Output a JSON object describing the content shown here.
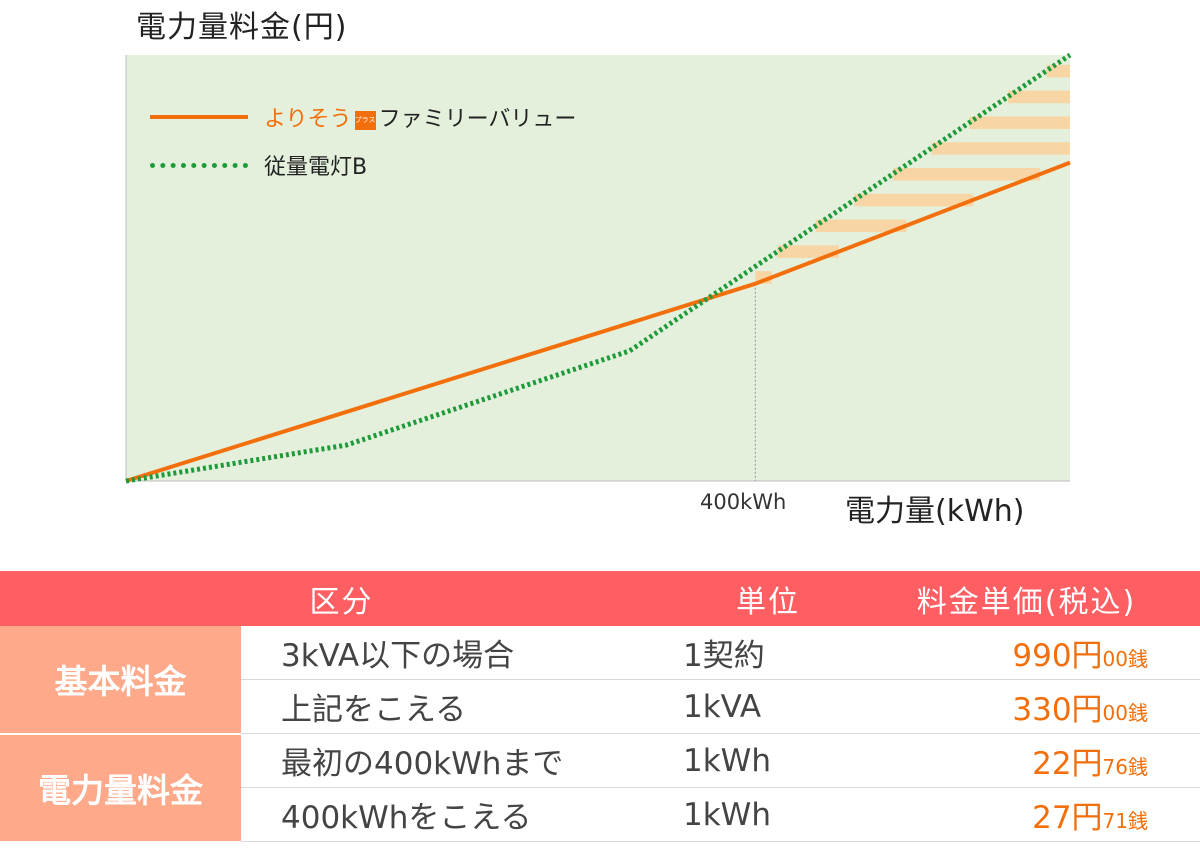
{
  "chart_data": {
    "type": "line",
    "title": "",
    "ylabel": "電力量料金(円)",
    "xlabel": "電力量(kWh)",
    "x_ticks": [
      400
    ],
    "x_tick_labels": [
      "400kWh"
    ],
    "xlim": [
      0,
      600
    ],
    "ylim": [
      0,
      19000
    ],
    "grid": false,
    "legend_position": "top-left",
    "background_color": "#e4f0dc",
    "difference_band_color": "#f8d5a4",
    "series": [
      {
        "name": "よりそう＋ファミリーバリュー",
        "style": "solid",
        "color": "#f26f0b",
        "points": [
          [
            0,
            0
          ],
          [
            400,
            8800
          ],
          [
            600,
            14200
          ]
        ]
      },
      {
        "name": "従量電灯B",
        "style": "dotted",
        "color": "#1e9a3a",
        "points": [
          [
            0,
            0
          ],
          [
            140,
            1600
          ],
          [
            320,
            5800
          ],
          [
            600,
            19000
          ]
        ]
      }
    ]
  },
  "legend": {
    "series1_prefix": "よりそう",
    "series1_badge": "プラス",
    "series1_suffix": "ファミリーバリュー",
    "series2": "従量電灯B"
  },
  "table": {
    "headers": [
      "区分",
      "単位",
      "料金単価(税込)"
    ],
    "groups": [
      {
        "category": "基本料金",
        "rows": [
          {
            "item": "3kVA以下の場合",
            "unit": "1契約",
            "yen": "990円",
            "sen": "00銭"
          },
          {
            "item": "上記をこえる",
            "unit": "1kVA",
            "yen": "330円",
            "sen": "00銭"
          }
        ]
      },
      {
        "category": "電力量料金",
        "rows": [
          {
            "item": "最初の400kWhまで",
            "unit": "1kWh",
            "yen": "22円",
            "sen": "76銭"
          },
          {
            "item": "400kWhをこえる",
            "unit": "1kWh",
            "yen": "27円",
            "sen": "71銭"
          }
        ]
      }
    ]
  },
  "colors": {
    "header_bg": "#ff5f63",
    "category_bg": "#fda98a",
    "price_text": "#f26f0b"
  }
}
